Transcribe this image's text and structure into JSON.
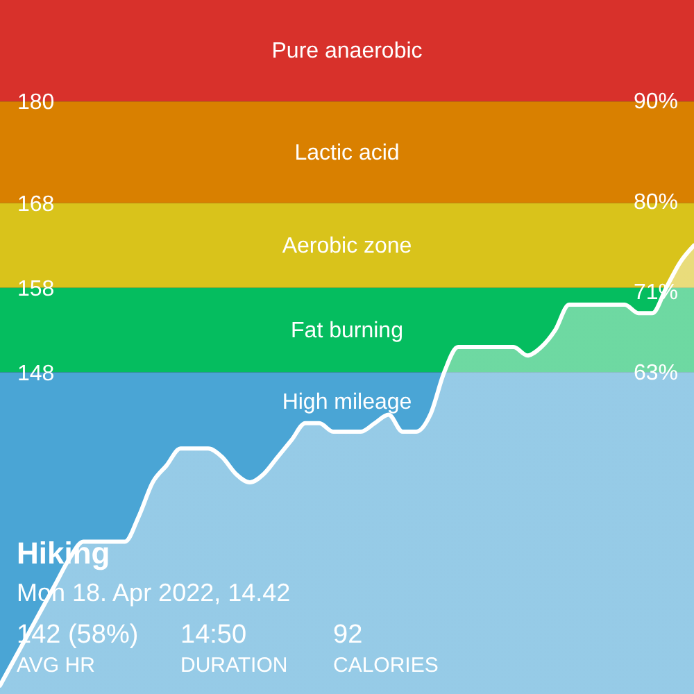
{
  "chart_data": {
    "type": "area",
    "categories": [
      null,
      null,
      null,
      null,
      null,
      null,
      null,
      null,
      null,
      null,
      null,
      null,
      null,
      null,
      null,
      null,
      null,
      null,
      null,
      null,
      null,
      null,
      null,
      null,
      null,
      null,
      null,
      null,
      null,
      null,
      null,
      null,
      null,
      null,
      null,
      null,
      null,
      null,
      null,
      null,
      null,
      null,
      null,
      null,
      null,
      null,
      null,
      null,
      null,
      null,
      null
    ],
    "values": [
      111,
      114,
      117,
      120,
      123,
      126,
      128,
      128,
      128,
      128,
      131,
      135,
      137,
      139,
      139,
      139,
      138,
      136,
      135,
      136,
      138,
      140,
      142,
      142,
      141,
      141,
      141,
      142,
      143,
      141,
      141,
      143,
      148,
      151,
      151,
      151,
      151,
      151,
      150,
      151,
      153,
      156,
      156,
      156,
      156,
      156,
      155,
      155,
      158,
      161,
      163
    ],
    "color": "#ffffff",
    "ylim": [
      110,
      192
    ],
    "yticks": [
      148,
      158,
      168,
      180
    ],
    "y2lim": [
      31,
      100
    ],
    "y2ticks": [
      {
        "value": 63,
        "label": "63%"
      },
      {
        "value": 71,
        "label": "71%"
      },
      {
        "value": 80,
        "label": "80%"
      },
      {
        "value": 90,
        "label": "90%"
      }
    ],
    "tick_labels": "y",
    "bands": [
      {
        "axis": "y",
        "from": 180,
        "to": 192,
        "label": "Pure anaerobic",
        "color": "#d8312b"
      },
      {
        "axis": "y",
        "from": 168,
        "to": 180,
        "label": "Lactic acid",
        "color": "#d98000"
      },
      {
        "axis": "y",
        "from": 158,
        "to": 168,
        "label": "Aerobic zone",
        "color": "#d9c31b"
      },
      {
        "axis": "y",
        "from": 148,
        "to": 158,
        "label": "Fat burning",
        "color": "#05bd5f"
      },
      {
        "axis": "y",
        "from": 110,
        "to": 148,
        "label": "High mileage",
        "color": "#4aa5d5"
      }
    ],
    "annotations": [
      "Hiking",
      "Mon 18. Apr 2022, 14.42",
      "142 (58%)",
      "AVG HR",
      "14:50",
      "DURATION",
      "92",
      "CALORIES"
    ]
  }
}
